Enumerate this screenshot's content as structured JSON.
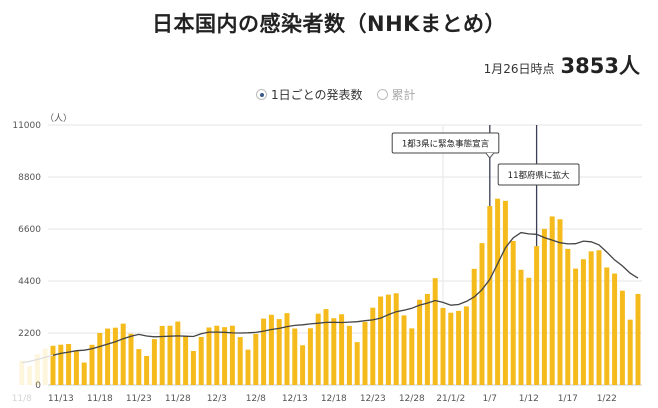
{
  "header": {
    "title": "日本国内の感染者数（NHKまとめ）",
    "as_of_label": "1月26日時点",
    "as_of_count": "3853人"
  },
  "toggle": {
    "options": [
      {
        "label": "1日ごとの発表数",
        "selected": true
      },
      {
        "label": "累計",
        "selected": false
      }
    ]
  },
  "colors": {
    "bar": "#f5bb1c",
    "line": "#444444",
    "grid": "#e6e6e6",
    "annotation_line": "#3b3f55"
  },
  "chart_data": {
    "type": "bar",
    "ylabel": "（人）",
    "ylim": [
      0,
      11000
    ],
    "yticks": [
      "0",
      "2200",
      "4400",
      "6600",
      "8800",
      "11000"
    ],
    "grid": true,
    "faded_before": "11/12",
    "categories": [
      "11/8",
      "11/9",
      "11/10",
      "11/11",
      "11/12",
      "11/13",
      "11/14",
      "11/15",
      "11/16",
      "11/17",
      "11/18",
      "11/19",
      "11/20",
      "11/21",
      "11/22",
      "11/23",
      "11/24",
      "11/25",
      "11/26",
      "11/27",
      "11/28",
      "11/29",
      "11/30",
      "12/1",
      "12/2",
      "12/3",
      "12/4",
      "12/5",
      "12/6",
      "12/7",
      "12/8",
      "12/9",
      "12/10",
      "12/11",
      "12/12",
      "12/13",
      "12/14",
      "12/15",
      "12/16",
      "12/17",
      "12/18",
      "12/19",
      "12/20",
      "12/21",
      "12/22",
      "12/23",
      "12/24",
      "12/25",
      "12/26",
      "12/27",
      "12/28",
      "12/29",
      "12/30",
      "12/31",
      "1/1",
      "1/2",
      "1/3",
      "1/4",
      "1/5",
      "1/6",
      "1/7",
      "1/8",
      "1/9",
      "1/10",
      "1/11",
      "1/12",
      "1/13",
      "1/14",
      "1/15",
      "1/16",
      "1/17",
      "1/18",
      "1/19",
      "1/20",
      "1/21",
      "1/22",
      "1/23",
      "1/24",
      "1/25",
      "1/26"
    ],
    "values": [
      1028,
      795,
      1287,
      1546,
      1660,
      1704,
      1735,
      1437,
      950,
      1699,
      2201,
      2388,
      2425,
      2596,
      2168,
      1518,
      1228,
      1942,
      2499,
      2508,
      2684,
      2064,
      1439,
      2031,
      2433,
      2507,
      2447,
      2509,
      2027,
      1497,
      2161,
      2810,
      2973,
      2788,
      3041,
      2390,
      1681,
      2401,
      3018,
      3211,
      2826,
      2992,
      2501,
      1814,
      2668,
      3271,
      3744,
      3823,
      3881,
      2946,
      2395,
      3605,
      3852,
      4520,
      3260,
      3058,
      3136,
      3325,
      4915,
      6004,
      7570,
      7882,
      7790,
      6094,
      4875,
      4537,
      5874,
      6605,
      7133,
      7014,
      5759,
      4925,
      5320,
      5654,
      5701,
      4973,
      4716,
      3990,
      2764,
      3853
    ],
    "line_values": [
      950,
      1000,
      1080,
      1170,
      1255,
      1336,
      1394,
      1452,
      1474,
      1533,
      1627,
      1731,
      1834,
      1957,
      2061,
      2142,
      2075,
      2038,
      2054,
      2066,
      2078,
      2063,
      2052,
      2167,
      2237,
      2238,
      2229,
      2204,
      2199,
      2207,
      2226,
      2280,
      2346,
      2395,
      2471,
      2523,
      2549,
      2583,
      2613,
      2647,
      2653,
      2646,
      2661,
      2680,
      2719,
      2755,
      2831,
      2973,
      3100,
      3164,
      3247,
      3381,
      3464,
      3575,
      3494,
      3377,
      3404,
      3537,
      3724,
      4031,
      4467,
      5127,
      5803,
      6226,
      6447,
      6393,
      6375,
      6237,
      6130,
      6019,
      5971,
      5978,
      6090,
      6059,
      5929,
      5621,
      5293,
      5040,
      4731,
      4522
    ],
    "xticks": [
      {
        "at": "11/8",
        "label": "11/8"
      },
      {
        "at": "11/13",
        "label": "11/13"
      },
      {
        "at": "11/18",
        "label": "11/18"
      },
      {
        "at": "11/23",
        "label": "11/23"
      },
      {
        "at": "11/28",
        "label": "11/28"
      },
      {
        "at": "12/3",
        "label": "12/3"
      },
      {
        "at": "12/8",
        "label": "12/8"
      },
      {
        "at": "12/13",
        "label": "12/13"
      },
      {
        "at": "12/18",
        "label": "12/18"
      },
      {
        "at": "12/23",
        "label": "12/23"
      },
      {
        "at": "12/28",
        "label": "12/28"
      },
      {
        "at": "1/2",
        "label": "21/1/2"
      },
      {
        "at": "1/7",
        "label": "1/7"
      },
      {
        "at": "1/12",
        "label": "1/12"
      },
      {
        "at": "1/17",
        "label": "1/17"
      },
      {
        "at": "1/22",
        "label": "1/22"
      }
    ],
    "year_boundary": "1/1",
    "annotations": [
      {
        "at": "1/7",
        "label": "1都3県に緊急事態宣言"
      },
      {
        "at": "1/13",
        "label": "11都府県に拡大"
      }
    ]
  }
}
